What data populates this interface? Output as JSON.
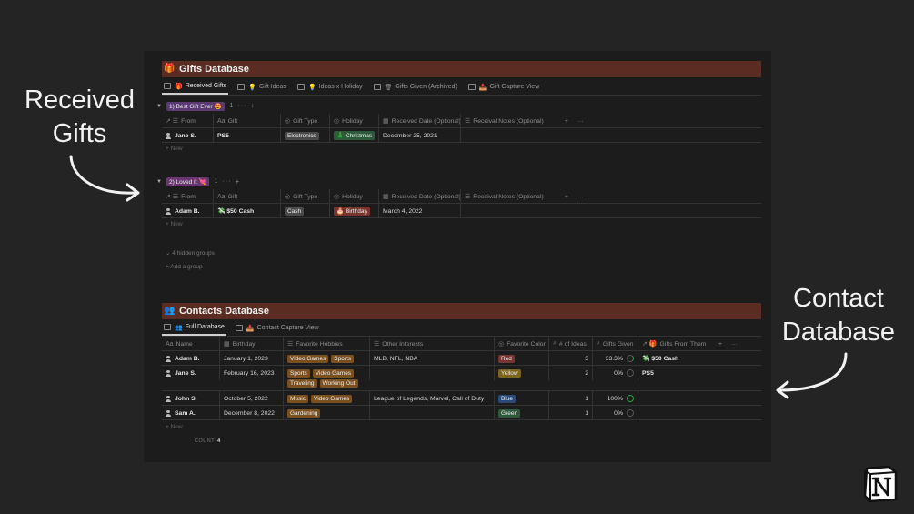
{
  "callouts": {
    "left": "Received\nGifts",
    "right": "Contact\nDatabase"
  },
  "gifts": {
    "title": "Gifts Database",
    "title_emoji": "🎁",
    "tabs": [
      {
        "label": "Received Gifts",
        "emoji": "🎁",
        "active": true
      },
      {
        "label": "Gift Ideas",
        "emoji": "💡"
      },
      {
        "label": "Ideas x Holiday",
        "emoji": "💡"
      },
      {
        "label": "Gifts Given (Archived)",
        "emoji": "🗑"
      },
      {
        "label": "Gift Capture View",
        "emoji": "📥"
      }
    ],
    "columns": [
      "From",
      "Gift",
      "Gift Type",
      "Holiday",
      "Received Date (Optional)",
      "Receival Notes (Optional)"
    ],
    "groups": [
      {
        "label": "1) Best Gift Ever 😍",
        "color": "#5b3a74",
        "count": "1",
        "rows": [
          {
            "from": "Jane S.",
            "gift": "PS5",
            "gift_type": "Electronics",
            "gift_type_color": "#4a4a4a",
            "holiday": "🎄 Christmas",
            "holiday_color": "#2d5a3a",
            "date": "December 25, 2021",
            "notes": ""
          }
        ]
      },
      {
        "label": "2) Loved It 💘",
        "color": "#6a3570",
        "count": "1",
        "rows": [
          {
            "from": "Adam B.",
            "gift": "💸 $50 Cash",
            "gift_type": "Cash",
            "gift_type_color": "#4a4a4a",
            "holiday": "🎂 Birthday",
            "holiday_color": "#7a3430",
            "date": "March 4, 2022",
            "notes": ""
          }
        ]
      }
    ],
    "new_label": "+ New",
    "hidden_groups": "⌄ 4 hidden groups",
    "add_group": "+ Add a group"
  },
  "contacts": {
    "title": "Contacts Database",
    "title_emoji": "👥",
    "tabs": [
      {
        "label": "Full Database",
        "emoji": "👥",
        "active": true
      },
      {
        "label": "Contact Capture View",
        "emoji": "📥"
      }
    ],
    "columns": [
      "Name",
      "Birthday",
      "Favorite Hobbies",
      "Other Interests",
      "Favorite Color",
      "# of Ideas",
      "Gifts Given",
      "Gifts From Them"
    ],
    "rows": [
      {
        "name": "Adam B.",
        "birthday": "January 1, 2023",
        "hobbies": [
          "Video Games",
          "Sports"
        ],
        "interests": "MLB, NFL, NBA",
        "color": "Red",
        "color_hex": "#7a3430",
        "ideas": "3",
        "given": "33.3%",
        "ring": "part",
        "from_them": "💸 $50 Cash"
      },
      {
        "name": "Jane S.",
        "birthday": "February 16, 2023",
        "hobbies": [
          "Sports",
          "Video Games",
          "Traveling",
          "Working Out"
        ],
        "interests": "",
        "color": "Yellow",
        "color_hex": "#7a6420",
        "ideas": "2",
        "given": "0%",
        "ring": "empty",
        "from_them": "PS5"
      },
      {
        "name": "John S.",
        "birthday": "October 5, 2022",
        "hobbies": [
          "Music",
          "Video Games"
        ],
        "interests": "League of Legends, Marvel, Call of Duty",
        "color": "Blue",
        "color_hex": "#2c4a78",
        "ideas": "1",
        "given": "100%",
        "ring": "full",
        "from_them": ""
      },
      {
        "name": "Sam A.",
        "birthday": "December 8, 2022",
        "hobbies": [
          "Gardening"
        ],
        "interests": "",
        "color": "Green",
        "color_hex": "#2d5a3a",
        "ideas": "1",
        "given": "0%",
        "ring": "empty",
        "from_them": ""
      }
    ],
    "new_label": "+ New",
    "count_label": "COUNT",
    "count_value": "4"
  },
  "colors": {
    "tag": "#7a5020",
    "header_bar": "#5a2c22"
  }
}
